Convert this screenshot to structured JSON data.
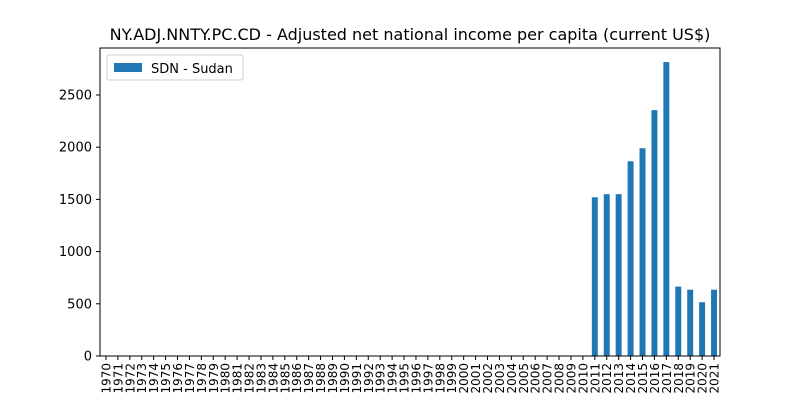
{
  "chart_data": {
    "type": "bar",
    "title": "NY.ADJ.NNTY.PC.CD - Adjusted net national income per capita (current US$)",
    "xlabel": "",
    "ylabel": "",
    "categories": [
      "1970",
      "1971",
      "1972",
      "1973",
      "1974",
      "1975",
      "1976",
      "1977",
      "1978",
      "1979",
      "1980",
      "1981",
      "1982",
      "1983",
      "1984",
      "1985",
      "1986",
      "1987",
      "1988",
      "1989",
      "1990",
      "1991",
      "1992",
      "1993",
      "1994",
      "1995",
      "1996",
      "1997",
      "1998",
      "1999",
      "2000",
      "2001",
      "2002",
      "2003",
      "2004",
      "2005",
      "2006",
      "2007",
      "2008",
      "2009",
      "2010",
      "2011",
      "2012",
      "2013",
      "2014",
      "2015",
      "2016",
      "2017",
      "2018",
      "2019",
      "2020",
      "2021"
    ],
    "series": [
      {
        "name": "SDN - Sudan",
        "color": "#1f77b4",
        "values": [
          null,
          null,
          null,
          null,
          null,
          null,
          null,
          null,
          null,
          null,
          null,
          null,
          null,
          null,
          null,
          null,
          null,
          null,
          null,
          null,
          null,
          null,
          null,
          null,
          null,
          null,
          null,
          null,
          null,
          null,
          null,
          null,
          null,
          null,
          null,
          null,
          null,
          null,
          null,
          null,
          null,
          1520,
          1550,
          1550,
          1865,
          1990,
          2355,
          2815,
          665,
          635,
          515,
          635
        ]
      }
    ],
    "ylim": [
      0,
      2950
    ],
    "yticks": [
      0,
      500,
      1000,
      1500,
      2000,
      2500
    ],
    "grid": false,
    "legend_position": "upper left"
  }
}
